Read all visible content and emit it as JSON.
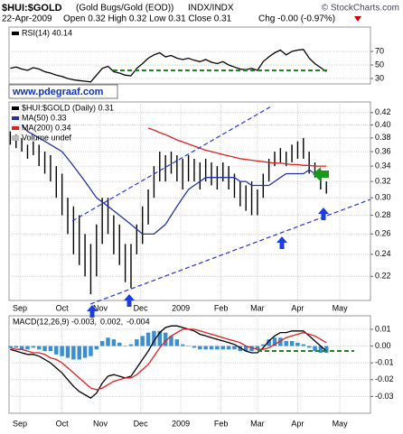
{
  "header": {
    "symbol": "$HUI:$GOLD",
    "name": "(Gold Bugs/Gold (EOD))",
    "exchange": "INDX/INDX",
    "source": "© StockCharts.com",
    "date": "22-Apr-2009",
    "quote": "Open 0.32  High 0.32  Low 0.31  Close 0.31",
    "change": "Chg -0.00 (-0.97%)"
  },
  "watermark": "www.pdegraaf.com",
  "chart_data": [
    {
      "type": "line",
      "x": [
        -5,
        -2,
        1,
        4,
        7,
        10,
        13,
        16,
        19,
        22,
        25,
        28,
        31,
        34,
        37,
        40,
        43,
        46,
        49,
        52,
        55,
        58,
        61,
        64,
        67,
        70,
        73,
        76,
        79,
        82,
        85,
        88,
        91,
        94,
        97,
        100,
        103,
        106,
        109,
        112,
        115,
        118,
        121,
        124,
        127,
        130,
        133,
        136,
        139,
        142,
        145,
        148,
        151,
        154,
        157,
        160
      ],
      "xlim": [
        -5.66,
        183
      ],
      "ylim": [
        22,
        106
      ],
      "yticks": [
        30,
        50,
        70
      ],
      "grid": true,
      "series": [
        {
          "name": "RSI(14) 40.14",
          "color": "#000000",
          "values": [
            45,
            47,
            44,
            42,
            46,
            44,
            40,
            38,
            35,
            33,
            30,
            28,
            27,
            26,
            25,
            35,
            45,
            48,
            40,
            38,
            35,
            34,
            45,
            52,
            60,
            65,
            68,
            62,
            64,
            60,
            58,
            60,
            57,
            55,
            58,
            54,
            52,
            55,
            50,
            47,
            44,
            43,
            45,
            42,
            55,
            62,
            68,
            72,
            65,
            70,
            72,
            73,
            60,
            52,
            46,
            40.14
          ]
        }
      ]
    },
    {
      "type": "ohlc",
      "log": true,
      "grid": true,
      "x": [
        -5,
        -2,
        1,
        4,
        7,
        10,
        13,
        16,
        19,
        22,
        25,
        28,
        31,
        34,
        37,
        40,
        43,
        46,
        49,
        52,
        55,
        58,
        61,
        64,
        67,
        70,
        73,
        76,
        79,
        82,
        85,
        88,
        91,
        94,
        97,
        100,
        103,
        106,
        109,
        112,
        115,
        118,
        121,
        124,
        127,
        130,
        133,
        136,
        139,
        142,
        145,
        148,
        151,
        154,
        157,
        160
      ],
      "xlim": [
        -5.66,
        183
      ],
      "xticks": [
        {
          "value": 0,
          "label": "Sep"
        },
        {
          "value": 22,
          "label": "Oct"
        },
        {
          "value": 42,
          "label": "Nov"
        },
        {
          "value": 63,
          "label": "Dec"
        },
        {
          "value": 84,
          "label": "2009"
        },
        {
          "value": 105,
          "label": "Feb"
        },
        {
          "value": 124,
          "label": "Mar"
        },
        {
          "value": 145,
          "label": "Apr"
        },
        {
          "value": 167,
          "label": "May"
        }
      ],
      "ylim": [
        0.2,
        0.438
      ],
      "yticks": [
        0.22,
        0.24,
        0.26,
        0.28,
        {
          "value": 0.3,
          "label": "0.30"
        },
        0.32,
        0.34,
        0.36,
        0.38,
        {
          "value": 0.4,
          "label": "0.40"
        },
        0.42
      ],
      "bars": {
        "name": "$HUI:$GOLD (Daily) 0.31",
        "color": "#000000",
        "high": [
          0.39,
          0.385,
          0.38,
          0.37,
          0.375,
          0.37,
          0.36,
          0.355,
          0.34,
          0.33,
          0.3,
          0.29,
          0.28,
          0.26,
          0.25,
          0.27,
          0.3,
          0.3,
          0.28,
          0.27,
          0.25,
          0.25,
          0.27,
          0.29,
          0.31,
          0.34,
          0.36,
          0.355,
          0.36,
          0.355,
          0.35,
          0.355,
          0.35,
          0.345,
          0.35,
          0.345,
          0.34,
          0.345,
          0.34,
          0.33,
          0.32,
          0.315,
          0.32,
          0.31,
          0.33,
          0.35,
          0.36,
          0.365,
          0.36,
          0.37,
          0.375,
          0.38,
          0.36,
          0.345,
          0.335,
          0.32
        ],
        "low": [
          0.37,
          0.365,
          0.36,
          0.35,
          0.355,
          0.34,
          0.33,
          0.32,
          0.3,
          0.28,
          0.26,
          0.24,
          0.23,
          0.22,
          0.205,
          0.22,
          0.25,
          0.26,
          0.24,
          0.23,
          0.215,
          0.21,
          0.24,
          0.25,
          0.27,
          0.3,
          0.32,
          0.32,
          0.33,
          0.32,
          0.31,
          0.32,
          0.32,
          0.31,
          0.32,
          0.315,
          0.31,
          0.32,
          0.31,
          0.3,
          0.29,
          0.285,
          0.28,
          0.28,
          0.3,
          0.32,
          0.34,
          0.345,
          0.34,
          0.345,
          0.35,
          0.35,
          0.33,
          0.325,
          0.31,
          0.305
        ]
      },
      "series": [
        {
          "name": "MA(50) 0.33",
          "color": "#2233aa",
          "values": [
            null,
            null,
            0.4,
            0.39,
            0.385,
            0.38,
            0.375,
            0.37,
            0.365,
            0.36,
            0.35,
            0.34,
            0.33,
            0.32,
            0.31,
            0.3,
            0.295,
            0.29,
            0.285,
            0.28,
            0.275,
            0.27,
            0.265,
            0.26,
            0.26,
            0.26,
            0.265,
            0.27,
            0.28,
            0.29,
            0.3,
            0.31,
            0.315,
            0.32,
            0.325,
            0.325,
            0.325,
            0.325,
            0.325,
            0.325,
            0.32,
            0.32,
            0.315,
            0.315,
            0.315,
            0.315,
            0.32,
            0.325,
            0.33,
            0.33,
            0.33,
            0.33,
            0.335,
            0.33,
            0.33,
            0.33
          ]
        },
        {
          "name": "MA(200) 0.34",
          "color": "#e02020",
          "values": [
            null,
            null,
            null,
            null,
            null,
            null,
            null,
            null,
            null,
            null,
            null,
            null,
            null,
            null,
            null,
            null,
            null,
            null,
            null,
            null,
            null,
            null,
            null,
            null,
            0.395,
            0.392,
            0.388,
            0.385,
            0.381,
            0.377,
            0.374,
            0.371,
            0.368,
            0.365,
            0.362,
            0.36,
            0.358,
            0.356,
            0.354,
            0.352,
            0.35,
            0.349,
            0.348,
            0.347,
            0.346,
            0.345,
            0.344,
            0.344,
            0.343,
            0.342,
            0.342,
            0.341,
            0.341,
            0.34,
            0.34,
            0.34
          ]
        }
      ],
      "volume_label": "Volume undef"
    },
    {
      "type": "combo",
      "grid": true,
      "x": [
        -5,
        -2,
        1,
        4,
        7,
        10,
        13,
        16,
        19,
        22,
        25,
        28,
        31,
        34,
        37,
        40,
        43,
        46,
        49,
        52,
        55,
        58,
        61,
        64,
        67,
        70,
        73,
        76,
        79,
        82,
        85,
        88,
        91,
        94,
        97,
        100,
        103,
        106,
        109,
        112,
        115,
        118,
        121,
        124,
        127,
        130,
        133,
        136,
        139,
        142,
        145,
        148,
        151,
        154,
        157,
        160
      ],
      "xlim": [
        -5.66,
        183
      ],
      "xticks": [
        {
          "value": 0,
          "label": "Sep"
        },
        {
          "value": 22,
          "label": "Oct"
        },
        {
          "value": 42,
          "label": "Nov"
        },
        {
          "value": 63,
          "label": "Dec"
        },
        {
          "value": 84,
          "label": "2009"
        },
        {
          "value": 105,
          "label": "Feb"
        },
        {
          "value": 124,
          "label": "Mar"
        },
        {
          "value": 145,
          "label": "Apr"
        },
        {
          "value": 167,
          "label": "May"
        }
      ],
      "ylim": [
        -0.04,
        0.018
      ],
      "yticks": [
        0.01,
        {
          "value": 0,
          "label": "0.00"
        },
        -0.01,
        -0.02,
        -0.03
      ],
      "series": [
        {
          "name": "MACD(12,26,9) -0.003,",
          "color": "#000000",
          "kind": "line",
          "values": [
            -0.002,
            -0.003,
            -0.004,
            -0.005,
            -0.005,
            -0.006,
            -0.008,
            -0.01,
            -0.013,
            -0.016,
            -0.02,
            -0.024,
            -0.027,
            -0.029,
            -0.031,
            -0.028,
            -0.022,
            -0.018,
            -0.017,
            -0.018,
            -0.019,
            -0.018,
            -0.013,
            -0.008,
            -0.003,
            0.003,
            0.008,
            0.011,
            0.012,
            0.012,
            0.011,
            0.01,
            0.009,
            0.007,
            0.006,
            0.005,
            0.004,
            0.003,
            0.002,
            0.001,
            -0.001,
            -0.003,
            -0.004,
            -0.004,
            -0.001,
            0.003,
            0.006,
            0.008,
            0.008,
            0.009,
            0.009,
            0.009,
            0.006,
            0.003,
            0,
            -0.003
          ]
        },
        {
          "name": "0.002,",
          "color": "#e02020",
          "kind": "line",
          "values": [
            -0.001,
            -0.002,
            -0.002,
            -0.003,
            -0.004,
            -0.004,
            -0.005,
            -0.007,
            -0.008,
            -0.01,
            -0.013,
            -0.016,
            -0.019,
            -0.022,
            -0.025,
            -0.026,
            -0.025,
            -0.023,
            -0.021,
            -0.02,
            -0.019,
            -0.019,
            -0.017,
            -0.014,
            -0.011,
            -0.006,
            -0.001,
            0.003,
            0.006,
            0.008,
            0.01,
            0.01,
            0.01,
            0.009,
            0.008,
            0.007,
            0.006,
            0.005,
            0.004,
            0.003,
            0.002,
            0,
            -0.001,
            -0.002,
            -0.002,
            -0.001,
            0.001,
            0.003,
            0.005,
            0.006,
            0.007,
            0.008,
            0.007,
            0.006,
            0.004,
            0.002
          ]
        },
        {
          "name": "-0.004",
          "color": "#3a8fd0",
          "kind": "bar",
          "values": [
            -0.001,
            -0.001,
            -0.002,
            -0.002,
            -0.001,
            -0.002,
            -0.003,
            -0.003,
            -0.005,
            -0.006,
            -0.007,
            -0.008,
            -0.008,
            -0.007,
            -0.006,
            -0.002,
            0.003,
            0.005,
            0.004,
            0.002,
            0,
            0.001,
            0.004,
            0.006,
            0.008,
            0.009,
            0.009,
            0.008,
            0.006,
            0.004,
            0.001,
            0,
            -0.001,
            -0.002,
            -0.002,
            -0.002,
            -0.002,
            -0.002,
            -0.002,
            -0.002,
            -0.003,
            -0.003,
            -0.003,
            -0.002,
            0.001,
            0.004,
            0.005,
            0.005,
            0.003,
            0.003,
            0.002,
            0.001,
            -0.001,
            -0.003,
            -0.004,
            -0.004
          ]
        }
      ]
    }
  ]
}
